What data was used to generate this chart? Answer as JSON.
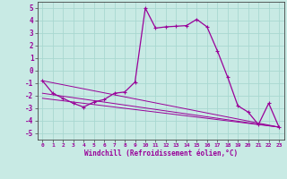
{
  "xlabel": "Windchill (Refroidissement éolien,°C)",
  "bg_color": "#c8eae4",
  "grid_color": "#a8d8d0",
  "line_color": "#990099",
  "label_color": "#990099",
  "xlim": [
    -0.5,
    23.5
  ],
  "ylim": [
    -5.5,
    5.5
  ],
  "xticks": [
    0,
    1,
    2,
    3,
    4,
    5,
    6,
    7,
    8,
    9,
    10,
    11,
    12,
    13,
    14,
    15,
    16,
    17,
    18,
    19,
    20,
    21,
    22,
    23
  ],
  "yticks": [
    -5,
    -4,
    -3,
    -2,
    -1,
    0,
    1,
    2,
    3,
    4,
    5
  ],
  "main_series": {
    "x": [
      0,
      1,
      2,
      3,
      4,
      5,
      6,
      7,
      8,
      9,
      10,
      11,
      12,
      13,
      14,
      15,
      16,
      17,
      18,
      19,
      20,
      21,
      22,
      23
    ],
    "y": [
      -0.8,
      -1.8,
      -2.2,
      -2.6,
      -2.9,
      -2.5,
      -2.3,
      -1.8,
      -1.7,
      -0.9,
      5.0,
      3.4,
      3.5,
      3.55,
      3.6,
      4.1,
      3.5,
      1.6,
      -0.5,
      -2.8,
      -3.3,
      -4.3,
      -2.6,
      -4.5
    ]
  },
  "trend_lines": [
    {
      "x": [
        0,
        23
      ],
      "y": [
        -0.8,
        -4.5
      ]
    },
    {
      "x": [
        0,
        23
      ],
      "y": [
        -1.8,
        -4.5
      ]
    },
    {
      "x": [
        0,
        23
      ],
      "y": [
        -2.2,
        -4.5
      ]
    }
  ]
}
